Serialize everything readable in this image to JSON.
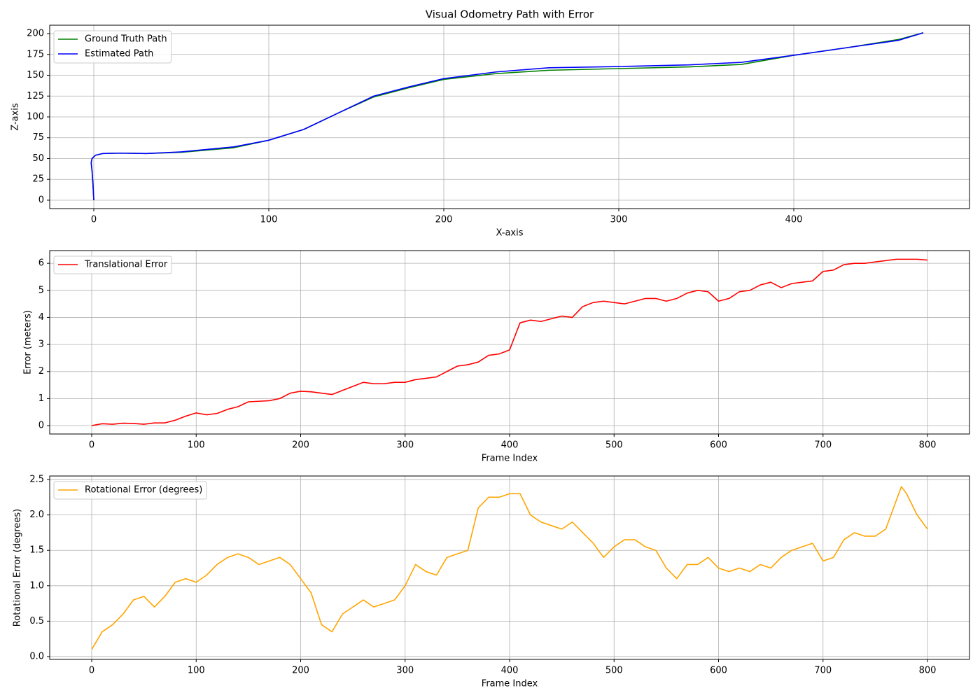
{
  "chart_data": [
    {
      "type": "line",
      "title": "Visual Odometry Path with Error",
      "x_label": "X-axis",
      "y_label": "Z-axis",
      "x": [
        0,
        -0.5,
        -1,
        -1.5,
        -1,
        1,
        5,
        15,
        30,
        50,
        80,
        100,
        120,
        140,
        160,
        180,
        200,
        230,
        260,
        300,
        340,
        370,
        400,
        430,
        460,
        474
      ],
      "series": [
        {
          "name": "Ground Truth Path",
          "color": "#008000",
          "values": [
            0,
            20,
            35,
            45,
            50,
            54,
            56,
            56.5,
            56,
            57.5,
            63,
            72,
            85,
            105,
            124,
            135,
            145,
            152,
            156,
            158,
            160,
            163,
            174,
            183,
            193,
            201
          ]
        },
        {
          "name": "Estimated Path",
          "color": "#0000ff",
          "values": [
            0,
            20,
            35,
            45,
            50,
            54,
            56,
            56.5,
            56,
            58,
            64,
            72,
            85,
            105,
            125,
            136,
            146,
            154,
            159,
            160.5,
            162.5,
            165.5,
            174,
            183,
            192,
            201
          ]
        }
      ],
      "xlim": [
        -25.2,
        500.4
      ],
      "ylim": [
        -10.1,
        210.1
      ],
      "xticks": [
        0,
        100,
        200,
        300,
        400
      ],
      "yticks": [
        0,
        25,
        50,
        75,
        100,
        125,
        150,
        175,
        200
      ],
      "grid": true,
      "legend": "upper-left"
    },
    {
      "type": "line",
      "x_label": "Frame Index",
      "y_label": "Error (meters)",
      "x": [
        0,
        10,
        20,
        30,
        40,
        50,
        60,
        70,
        80,
        90,
        100,
        110,
        120,
        130,
        140,
        150,
        160,
        170,
        180,
        190,
        200,
        210,
        220,
        230,
        240,
        250,
        260,
        270,
        280,
        290,
        300,
        310,
        320,
        330,
        340,
        350,
        360,
        370,
        380,
        390,
        400,
        405,
        410,
        420,
        430,
        440,
        450,
        460,
        470,
        480,
        490,
        500,
        510,
        520,
        530,
        540,
        550,
        560,
        570,
        580,
        590,
        600,
        610,
        620,
        630,
        640,
        650,
        660,
        670,
        680,
        690,
        700,
        710,
        720,
        730,
        740,
        750,
        760,
        770,
        780,
        790,
        800
      ],
      "series": [
        {
          "name": "Translational Error",
          "color": "#ff0000",
          "values": [
            0,
            0.07,
            0.05,
            0.09,
            0.08,
            0.05,
            0.1,
            0.1,
            0.2,
            0.35,
            0.47,
            0.4,
            0.45,
            0.6,
            0.7,
            0.88,
            0.9,
            0.92,
            1.0,
            1.2,
            1.27,
            1.25,
            1.2,
            1.15,
            1.3,
            1.45,
            1.6,
            1.55,
            1.55,
            1.6,
            1.6,
            1.7,
            1.75,
            1.8,
            2.0,
            2.2,
            2.25,
            2.35,
            2.6,
            2.65,
            2.8,
            3.3,
            3.8,
            3.9,
            3.85,
            3.95,
            4.05,
            4.0,
            4.4,
            4.55,
            4.6,
            4.55,
            4.5,
            4.6,
            4.7,
            4.7,
            4.6,
            4.7,
            4.9,
            5.0,
            4.95,
            4.6,
            4.7,
            4.95,
            5.0,
            5.2,
            5.3,
            5.1,
            5.25,
            5.3,
            5.35,
            5.7,
            5.75,
            5.95,
            6.0,
            6.0,
            6.05,
            6.1,
            6.15,
            6.15,
            6.15,
            6.12
          ]
        }
      ],
      "xlim": [
        -40.2,
        840.2
      ],
      "ylim": [
        -0.31,
        6.47
      ],
      "xticks": [
        0,
        100,
        200,
        300,
        400,
        500,
        600,
        700,
        800
      ],
      "yticks": [
        0,
        1,
        2,
        3,
        4,
        5,
        6
      ],
      "grid": true,
      "legend": "upper-left"
    },
    {
      "type": "line",
      "x_label": "Frame Index",
      "y_label": "Rotational Error (degrees)",
      "x": [
        0,
        10,
        20,
        30,
        40,
        50,
        60,
        70,
        80,
        90,
        100,
        110,
        120,
        130,
        140,
        150,
        160,
        170,
        180,
        190,
        200,
        210,
        220,
        230,
        240,
        250,
        260,
        270,
        280,
        290,
        300,
        310,
        320,
        330,
        340,
        350,
        360,
        370,
        380,
        390,
        400,
        410,
        420,
        430,
        440,
        450,
        460,
        470,
        480,
        490,
        500,
        510,
        520,
        530,
        540,
        550,
        560,
        570,
        580,
        590,
        600,
        610,
        620,
        630,
        640,
        650,
        660,
        670,
        680,
        690,
        700,
        710,
        720,
        730,
        740,
        750,
        760,
        770,
        775,
        780,
        790,
        800
      ],
      "series": [
        {
          "name": "Rotational Error (degrees)",
          "color": "#ffa500",
          "values": [
            0.1,
            0.35,
            0.45,
            0.6,
            0.8,
            0.85,
            0.7,
            0.85,
            1.05,
            1.1,
            1.05,
            1.15,
            1.3,
            1.4,
            1.45,
            1.4,
            1.3,
            1.35,
            1.4,
            1.3,
            1.1,
            0.9,
            0.45,
            0.35,
            0.6,
            0.7,
            0.8,
            0.7,
            0.75,
            0.8,
            1.0,
            1.3,
            1.2,
            1.15,
            1.4,
            1.45,
            1.5,
            2.1,
            2.25,
            2.25,
            2.3,
            2.3,
            2.0,
            1.9,
            1.85,
            1.8,
            1.9,
            1.75,
            1.6,
            1.4,
            1.55,
            1.65,
            1.65,
            1.55,
            1.5,
            1.25,
            1.1,
            1.3,
            1.3,
            1.4,
            1.25,
            1.2,
            1.25,
            1.2,
            1.3,
            1.25,
            1.4,
            1.5,
            1.55,
            1.6,
            1.35,
            1.4,
            1.65,
            1.75,
            1.7,
            1.7,
            1.8,
            2.2,
            2.4,
            2.3,
            2.0,
            1.8
          ]
        }
      ],
      "xlim": [
        -40.2,
        840.2
      ],
      "ylim": [
        -0.04,
        2.55
      ],
      "xticks": [
        0,
        100,
        200,
        300,
        400,
        500,
        600,
        700,
        800
      ],
      "yticks": [
        {
          "value": 0,
          "label": "0.0"
        },
        0.5,
        {
          "value": 1,
          "label": "1.0"
        },
        1.5,
        {
          "value": 2,
          "label": "2.0"
        },
        2.5
      ],
      "grid": true,
      "legend": "upper-left"
    }
  ]
}
